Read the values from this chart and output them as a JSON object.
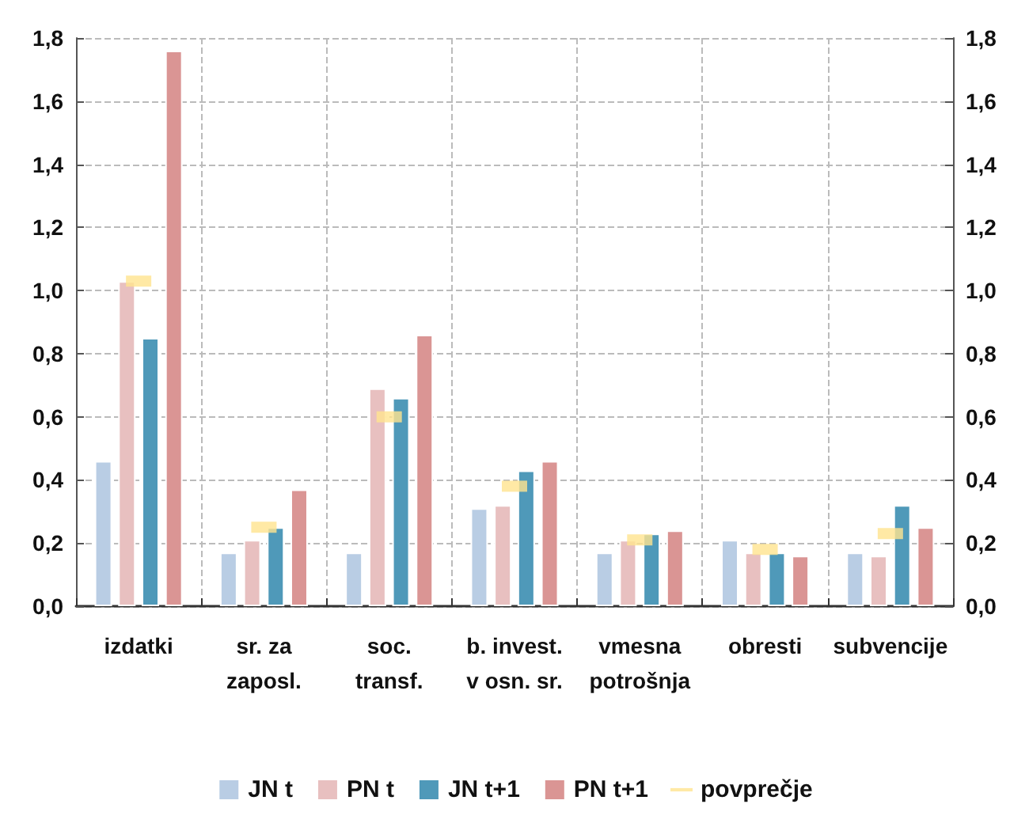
{
  "chart_data": {
    "type": "bar",
    "categories": [
      "izdatki",
      "sr. za\nzaposl.",
      "soc.\ntransf.",
      "b. invest.\nv osn. sr.",
      "vmesna\npotrošnja",
      "obresti",
      "subvencije"
    ],
    "series": [
      {
        "name": "JN t",
        "color": "#b9cde4",
        "values": [
          0.46,
          0.17,
          0.17,
          0.31,
          0.17,
          0.21,
          0.17
        ]
      },
      {
        "name": "PN t",
        "color": "#e8c0c0",
        "values": [
          1.03,
          0.21,
          0.69,
          0.32,
          0.21,
          0.17,
          0.16
        ]
      },
      {
        "name": "JN t+1",
        "color": "#4f99b9",
        "values": [
          0.85,
          0.25,
          0.66,
          0.43,
          0.23,
          0.17,
          0.32
        ]
      },
      {
        "name": "PN t+1",
        "color": "#da9594",
        "values": [
          1.76,
          0.37,
          0.86,
          0.46,
          0.24,
          0.16,
          0.25
        ]
      },
      {
        "name": "povprečje",
        "type": "scatter",
        "marker": "square",
        "color": "#ffe38f",
        "x": [
          "izdatki",
          "sr. za\nzaposl.",
          "soc.\ntransf.",
          "b. invest.\nv osn. sr.",
          "vmesna\npotrošnja",
          "obresti",
          "subvencije"
        ],
        "values": [
          1.03,
          0.25,
          0.6,
          0.38,
          0.21,
          0.18,
          0.23
        ]
      }
    ],
    "ylim": [
      0,
      1.8
    ],
    "yticks": [
      {
        "value": 0,
        "label": "0,0"
      },
      {
        "value": 0.2,
        "label": "0,2"
      },
      {
        "value": 0.4,
        "label": "0,4"
      },
      {
        "value": 0.6,
        "label": "0,6"
      },
      {
        "value": 0.8,
        "label": "0,8"
      },
      {
        "value": 1.0,
        "label": "1,0"
      },
      {
        "value": 1.2,
        "label": "1,2"
      },
      {
        "value": 1.4,
        "label": "1,4"
      },
      {
        "value": 1.6,
        "label": "1,6"
      },
      {
        "value": 1.8,
        "label": "1,8"
      }
    ],
    "y2lim": [
      0,
      1.8
    ],
    "y2ticks": [
      {
        "value": 0,
        "label": "0,0"
      },
      {
        "value": 0.2,
        "label": "0,2"
      },
      {
        "value": 0.4,
        "label": "0,4"
      },
      {
        "value": 0.6,
        "label": "0,6"
      },
      {
        "value": 0.8,
        "label": "0,8"
      },
      {
        "value": 1.0,
        "label": "1,0"
      },
      {
        "value": 1.2,
        "label": "1,2"
      },
      {
        "value": 1.4,
        "label": "1,4"
      },
      {
        "value": 1.6,
        "label": "1,6"
      },
      {
        "value": 1.8,
        "label": "1,8"
      }
    ],
    "grid": true,
    "legend": "bottom"
  }
}
